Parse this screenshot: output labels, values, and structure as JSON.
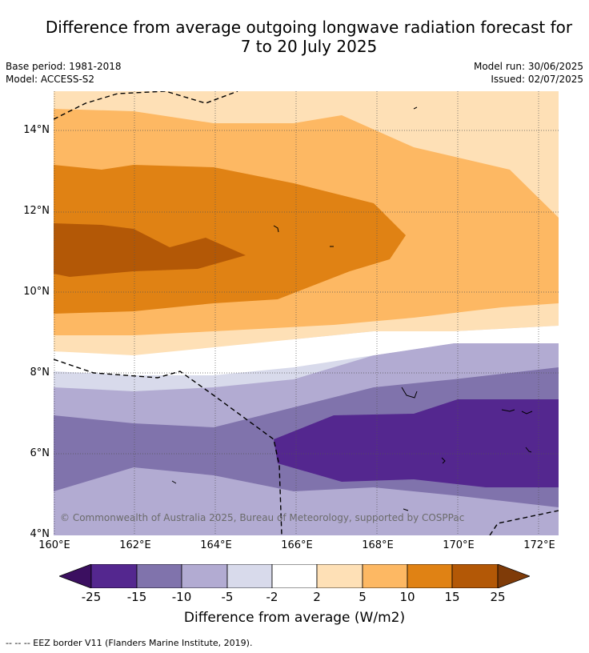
{
  "title_line1": "Difference from average outgoing longwave radiation forecast for",
  "title_line2": "7 to 20 July 2025",
  "base_period": "Base period: 1981-2018",
  "model": "Model: ACCESS-S2",
  "model_run": "Model run: 30/06/2025",
  "issued": "Issued: 02/07/2025",
  "lat_ticks": [
    "14°N",
    "12°N",
    "10°N",
    "8°N",
    "6°N",
    "4°N"
  ],
  "lon_ticks": [
    "160°E",
    "162°E",
    "164°E",
    "166°E",
    "168°E",
    "170°E",
    "172°E"
  ],
  "copyright": "© Commonwealth of Australia 2025, Bureau of Meteorology, supported by COSPPac",
  "colorbar": {
    "labels": [
      "-25",
      "-15",
      "-10",
      "-5",
      "-2",
      "2",
      "5",
      "10",
      "15",
      "25"
    ],
    "colors": [
      "#3b0f60",
      "#54278f",
      "#8073ac",
      "#b2abd2",
      "#d8daeb",
      "#ffffff",
      "#fee0b6",
      "#fdb863",
      "#e08214",
      "#b35806",
      "#7f3b08"
    ],
    "title": "Difference from average (W/m2)"
  },
  "eez_note": "--  --  -- EEZ border V11 (Flanders Marine Institute, 2019)."
}
